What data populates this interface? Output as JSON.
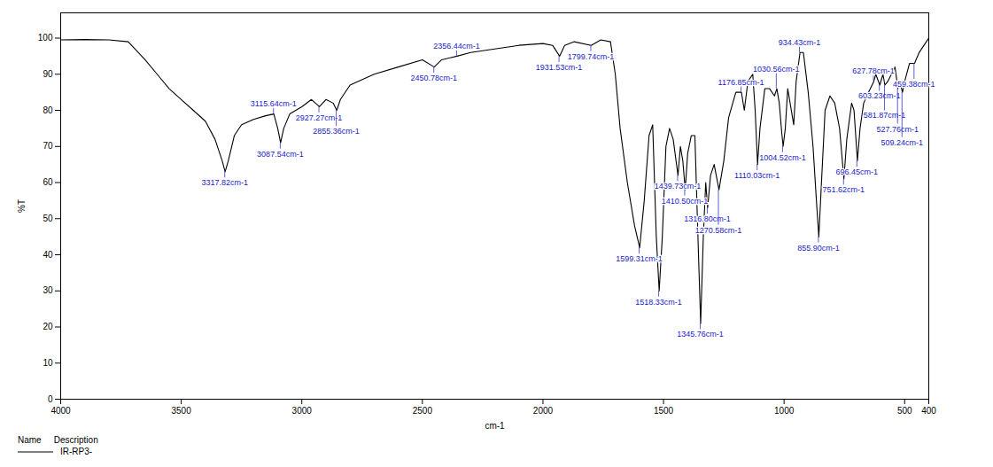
{
  "chart_data": {
    "type": "line",
    "x_label": "cm-1",
    "y_label": "%T",
    "xlim": [
      4000,
      400
    ],
    "ylim": [
      0,
      107
    ],
    "xticks": [
      4000,
      3500,
      3000,
      2500,
      2000,
      1500,
      1000,
      500,
      400
    ],
    "yticks": [
      0,
      10,
      20,
      30,
      40,
      50,
      60,
      70,
      80,
      90,
      100
    ],
    "legend": "bottom",
    "legend_columns": [
      "Name",
      "Description"
    ],
    "x": [
      4000,
      3900,
      3800,
      3720,
      3650,
      3600,
      3550,
      3500,
      3450,
      3400,
      3360,
      3330,
      3318,
      3305,
      3280,
      3250,
      3200,
      3150,
      3116,
      3100,
      3088,
      3075,
      3050,
      3000,
      2960,
      2927,
      2900,
      2870,
      2855,
      2840,
      2800,
      2700,
      2600,
      2500,
      2451,
      2420,
      2356,
      2300,
      2200,
      2100,
      2000,
      1960,
      1931,
      1910,
      1870,
      1800,
      1760,
      1720,
      1700,
      1680,
      1650,
      1620,
      1599,
      1580,
      1560,
      1545,
      1530,
      1518,
      1505,
      1490,
      1475,
      1460,
      1440,
      1430,
      1420,
      1410,
      1400,
      1385,
      1370,
      1355,
      1346,
      1335,
      1325,
      1317,
      1305,
      1290,
      1270,
      1250,
      1230,
      1200,
      1177,
      1165,
      1150,
      1130,
      1120,
      1110,
      1100,
      1080,
      1060,
      1040,
      1030,
      1020,
      1010,
      1004,
      995,
      985,
      975,
      960,
      950,
      934,
      920,
      900,
      880,
      866,
      856,
      845,
      830,
      810,
      790,
      770,
      752,
      740,
      720,
      710,
      696,
      685,
      670,
      650,
      628,
      620,
      603,
      590,
      582,
      570,
      555,
      540,
      528,
      520,
      509,
      500,
      480,
      459,
      440,
      420,
      400
    ],
    "series": [
      {
        "name": "IR-RP3-",
        "color": "#000000",
        "values": [
          99.5,
          99.6,
          99.5,
          99,
          94,
          90,
          86,
          83,
          80,
          77,
          72,
          66,
          63,
          66,
          73,
          76,
          77.5,
          78.5,
          79,
          75,
          71,
          75,
          79,
          81,
          83,
          81,
          83,
          82,
          80,
          83,
          87,
          90,
          92,
          94,
          92,
          94,
          95,
          96,
          97,
          98,
          98.5,
          98,
          95,
          98,
          99,
          98,
          99.5,
          99,
          90,
          75,
          60,
          48,
          42,
          55,
          73,
          76,
          45,
          30,
          45,
          70,
          75,
          72,
          62,
          70,
          66,
          58,
          68,
          73,
          73,
          40,
          21,
          45,
          60,
          53,
          62,
          65,
          58,
          66,
          78,
          85,
          85,
          80,
          88,
          90,
          80,
          65,
          75,
          86,
          86,
          84,
          86,
          82,
          74,
          70,
          75,
          86,
          82,
          76,
          88,
          96,
          96,
          85,
          70,
          55,
          45,
          60,
          80,
          84,
          82,
          75,
          61,
          72,
          82,
          80,
          66,
          75,
          82,
          85,
          88,
          90,
          87,
          90,
          87,
          88,
          90,
          92,
          86,
          88,
          85,
          88,
          93,
          93,
          96,
          98,
          100
        ]
      }
    ],
    "annotations": [
      {
        "x": 3317.82,
        "y": 63,
        "label": "3317.82cm-1"
      },
      {
        "x": 3115.64,
        "y": 79,
        "label": "3115.64cm-1"
      },
      {
        "x": 3087.54,
        "y": 71,
        "label": "3087.54cm-1"
      },
      {
        "x": 2927.27,
        "y": 81,
        "label": "2927.27cm-1"
      },
      {
        "x": 2855.36,
        "y": 80,
        "label": "2855.36cm-1"
      },
      {
        "x": 2450.78,
        "y": 92,
        "label": "2450.78cm-1"
      },
      {
        "x": 2356.44,
        "y": 95,
        "label": "2356.44cm-1"
      },
      {
        "x": 1931.53,
        "y": 95,
        "label": "1931.53cm-1"
      },
      {
        "x": 1799.74,
        "y": 98,
        "label": "1799.74cm-1"
      },
      {
        "x": 1599.31,
        "y": 42,
        "label": "1599.31cm-1"
      },
      {
        "x": 1518.33,
        "y": 30,
        "label": "1518.33cm-1"
      },
      {
        "x": 1439.73,
        "y": 62,
        "label": "1439.73cm-1"
      },
      {
        "x": 1410.5,
        "y": 58,
        "label": "1410.50cm-1"
      },
      {
        "x": 1345.76,
        "y": 21,
        "label": "1345.76cm-1"
      },
      {
        "x": 1316.8,
        "y": 53,
        "label": "1316.80cm-1"
      },
      {
        "x": 1270.58,
        "y": 58,
        "label": "1270.58cm-1"
      },
      {
        "x": 1176.85,
        "y": 85,
        "label": "1176.85cm-1"
      },
      {
        "x": 1110.03,
        "y": 65,
        "label": "1110.03cm-1"
      },
      {
        "x": 1030.56,
        "y": 86,
        "label": "1030.56cm-1"
      },
      {
        "x": 1004.52,
        "y": 70,
        "label": "1004.52cm-1"
      },
      {
        "x": 934.43,
        "y": 96,
        "label": "934.43cm-1"
      },
      {
        "x": 855.9,
        "y": 45,
        "label": "855.90cm-1"
      },
      {
        "x": 751.62,
        "y": 61,
        "label": "751.62cm-1"
      },
      {
        "x": 696.45,
        "y": 66,
        "label": "696.45cm-1"
      },
      {
        "x": 627.78,
        "y": 88,
        "label": "627.78cm-1"
      },
      {
        "x": 603.23,
        "y": 87,
        "label": "603.23cm-1"
      },
      {
        "x": 581.87,
        "y": 87,
        "label": "581.87cm-1"
      },
      {
        "x": 527.76,
        "y": 86,
        "label": "527.76cm-1"
      },
      {
        "x": 509.24,
        "y": 85,
        "label": "509.24cm-1"
      },
      {
        "x": 459.38,
        "y": 93,
        "label": "459.38cm-1"
      }
    ]
  }
}
